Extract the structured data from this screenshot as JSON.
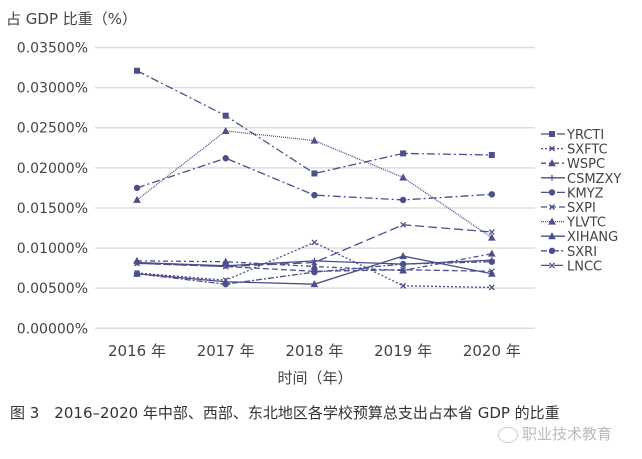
{
  "chart_data": {
    "type": "line",
    "ylabel": "占 GDP 比重（%）",
    "xlabel": "时间（年）",
    "categories": [
      "2016 年",
      "2017 年",
      "2018 年",
      "2019 年",
      "2020 年"
    ],
    "yticks": [
      "0.00000%",
      "0.00500%",
      "0.01000%",
      "0.01500%",
      "0.02000%",
      "0.02500%",
      "0.03000%",
      "0.03500%"
    ],
    "ylim": [
      0,
      0.035
    ],
    "grid": true,
    "legend_position": "right",
    "line_color": "#4b4f8c",
    "series": [
      {
        "name": "YRCTI",
        "marker": "square",
        "dash": "8,3,2,3",
        "values": [
          0.0321,
          0.0265,
          0.0193,
          0.0218,
          0.0216
        ]
      },
      {
        "name": "SXFTC",
        "marker": "x",
        "dash": "2,2",
        "values": [
          0.0069,
          0.006,
          0.0107,
          0.0053,
          0.0051
        ]
      },
      {
        "name": "WSPC",
        "marker": "triangle",
        "dash": "5,3,2,3",
        "values": [
          0.0084,
          0.0083,
          0.0077,
          0.0072,
          0.0093
        ]
      },
      {
        "name": "CSMZXY",
        "marker": "plus",
        "dash": "",
        "values": [
          0.0082,
          0.0078,
          0.0084,
          0.008,
          0.0085
        ]
      },
      {
        "name": "KMYZ",
        "marker": "circle",
        "dash": "8,3,2,3",
        "values": [
          0.0175,
          0.0212,
          0.0166,
          0.016,
          0.0167
        ]
      },
      {
        "name": "SXPI",
        "marker": "x",
        "dash": "6,3",
        "values": [
          0.0081,
          0.0077,
          0.0071,
          0.0073,
          0.0071
        ]
      },
      {
        "name": "YLVTC",
        "marker": "triangle",
        "dash": "1,1",
        "values": [
          0.016,
          0.0246,
          0.0234,
          0.0188,
          0.0113
        ]
      },
      {
        "name": "XIHANG",
        "marker": "triangle",
        "dash": "",
        "values": [
          0.0068,
          0.0058,
          0.0055,
          0.009,
          0.0068
        ]
      },
      {
        "name": "SXRI",
        "marker": "circle",
        "dash": "6,2,2,2",
        "values": [
          0.0068,
          0.0055,
          0.007,
          0.008,
          0.0083
        ]
      },
      {
        "name": "LNCC",
        "marker": "x",
        "dash": "9,4",
        "values": [
          0.0081,
          0.0077,
          0.0082,
          0.0129,
          0.012
        ]
      }
    ]
  },
  "caption": "图 3　2016–2020 年中部、西部、东北地区各学校预算总支出占本省 GDP 的比重",
  "watermark": "职业技术教育"
}
